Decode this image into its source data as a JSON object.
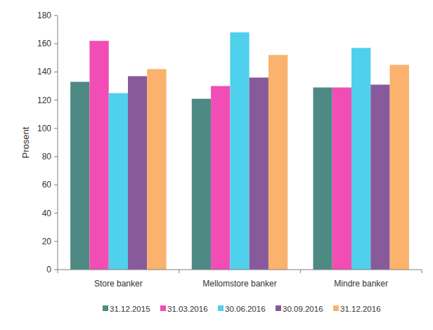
{
  "chart_data": {
    "type": "bar",
    "y_label": "Prosent",
    "categories": [
      "Store banker",
      "Mellomstore banker",
      "Mindre banker"
    ],
    "series": [
      {
        "name": "31.12.2015",
        "color": "#4e8a83",
        "values": [
          133,
          121,
          129
        ]
      },
      {
        "name": "31.03.2016",
        "color": "#f14db5",
        "values": [
          162,
          130,
          129
        ]
      },
      {
        "name": "30.06.2016",
        "color": "#4fd0ec",
        "values": [
          125,
          168,
          157
        ]
      },
      {
        "name": "30.09.2016",
        "color": "#885a9b",
        "values": [
          137,
          136,
          131
        ]
      },
      {
        "name": "31.12.2016",
        "color": "#fab26c",
        "values": [
          142,
          152,
          145
        ]
      }
    ],
    "ylim": [
      0,
      180
    ],
    "yticks": [
      0,
      20,
      40,
      60,
      80,
      100,
      120,
      140,
      160,
      180
    ],
    "grid": false,
    "legend": "bottom"
  }
}
